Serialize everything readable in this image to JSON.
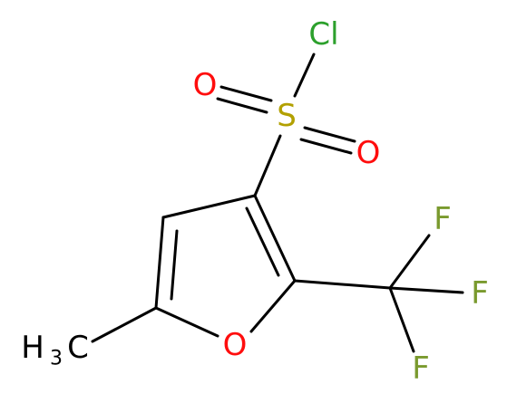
{
  "atoms": {
    "chlorine": "Cl",
    "sulfur": "S",
    "oxygen_left": "O",
    "oxygen_right": "O",
    "fluorine_top": "F",
    "fluorine_right": "F",
    "fluorine_bottom": "F",
    "ring_oxygen": "O",
    "methyl": {
      "h": "H",
      "count": "3",
      "c": "C"
    }
  }
}
